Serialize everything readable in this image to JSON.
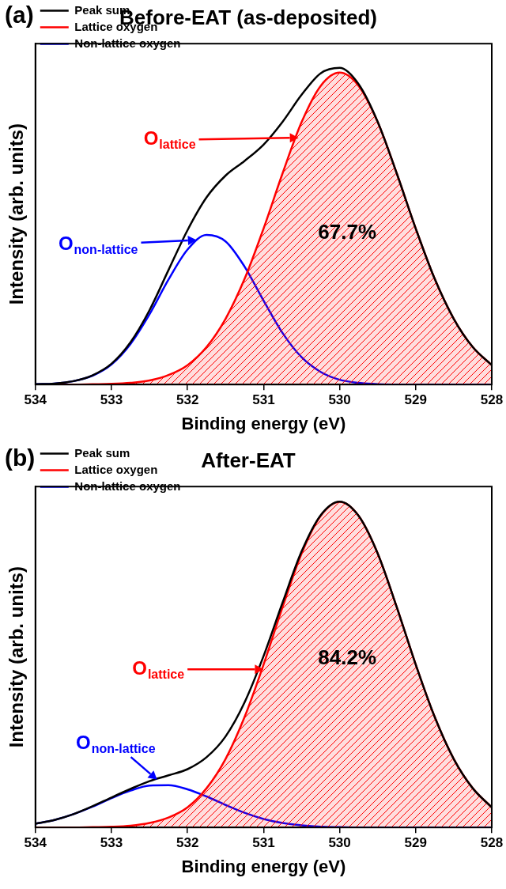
{
  "chart_data": [
    {
      "type": "line",
      "panel": "(a)",
      "title": "Before-EAT (as-deposited)",
      "x_label": "Binding energy (eV)",
      "y_label": "Intensity (arb. units)",
      "x": [
        534,
        533.75,
        533.5,
        533.25,
        533,
        532.75,
        532.5,
        532.25,
        532,
        531.75,
        531.5,
        531.25,
        531,
        530.75,
        530.5,
        530.25,
        530,
        529.75,
        529.5,
        529.25,
        529,
        528.75,
        528.5,
        528.25,
        528
      ],
      "series": [
        {
          "name": "Peak sum",
          "color": "#000000",
          "type": "line",
          "marker": "none",
          "line_style": "solid",
          "values": [
            0.1,
            0.3,
            1.0,
            2.7,
            6.1,
            12.4,
            21.8,
            33.6,
            45.3,
            54.9,
            61.3,
            65.6,
            70.4,
            77.1,
            85.0,
            91.3,
            92.9,
            88.1,
            77.1,
            62.0,
            45.8,
            31.0,
            19.3,
            11.0,
            5.7
          ]
        },
        {
          "name": "Lattice oxygen",
          "color": "#ff0000",
          "type": "area",
          "marker": "none",
          "line_style": "solid",
          "values": [
            0,
            0,
            0,
            0.1,
            0.2,
            0.5,
            1.2,
            2.8,
            5.7,
            11.0,
            19.3,
            31.0,
            45.8,
            62.0,
            77.0,
            87.6,
            91.5,
            87.6,
            77.0,
            62.0,
            45.8,
            31.0,
            19.3,
            11.0,
            5.7
          ]
        },
        {
          "name": "Non-lattice oxygen",
          "color": "#0000ff",
          "type": "line",
          "marker": "none",
          "line_style": "solid",
          "values": [
            0.1,
            0.3,
            1.0,
            2.6,
            5.9,
            11.9,
            20.6,
            30.8,
            39.6,
            43.9,
            42.0,
            34.6,
            24.6,
            15.1,
            8.0,
            3.7,
            1.4,
            0.5,
            0.1,
            0,
            0,
            0,
            0,
            0,
            0
          ]
        }
      ],
      "xlim": [
        534,
        528
      ],
      "xticks": [
        534,
        533,
        532,
        531,
        530,
        529,
        528
      ],
      "ylim": [
        0,
        100
      ],
      "tick_labels": "x",
      "grid": false,
      "legend": "upper left",
      "annotations": [
        {
          "text": "O",
          "subscript": "lattice",
          "color": "#ff0000",
          "text_at": [
            532.24,
            71.8
          ],
          "x": 530.54,
          "y": 72.4
        },
        {
          "text": "O",
          "subscript": "non-lattice",
          "color": "#0000ff",
          "text_at": [
            533.18,
            41.0
          ],
          "x": 531.88,
          "y": 42.4
        },
        {
          "text": "67.7%",
          "color": "#000000",
          "text_at": [
            529.9,
            44.5
          ]
        }
      ]
    },
    {
      "type": "line",
      "panel": "(b)",
      "title": "After-EAT",
      "x_label": "Binding energy (eV)",
      "y_label": "Intensity (arb. units)",
      "x": [
        534,
        533.75,
        533.5,
        533.25,
        533,
        532.75,
        532.5,
        532.25,
        532,
        531.75,
        531.5,
        531.25,
        531,
        530.75,
        530.5,
        530.25,
        530,
        529.75,
        529.5,
        529.25,
        529,
        528.75,
        528.5,
        528.25,
        528
      ],
      "series": [
        {
          "name": "Peak sum",
          "color": "#000000",
          "type": "line",
          "marker": "none",
          "line_style": "solid",
          "values": [
            1.1,
            2.2,
            3.9,
            6.2,
            8.8,
            11.3,
            13.6,
            15.3,
            17.1,
            20.6,
            26.7,
            36.7,
            50.3,
            66.0,
            81.0,
            91.6,
            95.6,
            91.4,
            80.4,
            64.7,
            47.8,
            32.4,
            20.1,
            11.5,
            5.9
          ]
        },
        {
          "name": "Lattice oxygen",
          "color": "#ff0000",
          "type": "area",
          "marker": "none",
          "line_style": "solid",
          "values": [
            0,
            0,
            0,
            0.1,
            0.2,
            0.5,
            1.3,
            2.9,
            5.9,
            11.5,
            20.1,
            32.4,
            47.8,
            64.7,
            80.4,
            91.4,
            95.5,
            91.4,
            80.4,
            64.7,
            47.8,
            32.4,
            20.1,
            11.5,
            5.9
          ]
        },
        {
          "name": "Non-lattice oxygen",
          "color": "#0000ff",
          "type": "line",
          "marker": "none",
          "line_style": "solid",
          "values": [
            1.1,
            2.2,
            3.9,
            6.1,
            8.6,
            10.8,
            12.3,
            12.4,
            11.2,
            9.1,
            6.6,
            4.3,
            2.5,
            1.3,
            0.6,
            0.2,
            0.1,
            0,
            0,
            0,
            0,
            0,
            0,
            0,
            0
          ]
        }
      ],
      "xlim": [
        534,
        528
      ],
      "xticks": [
        534,
        533,
        532,
        531,
        530,
        529,
        528
      ],
      "ylim": [
        0,
        100
      ],
      "tick_labels": "x",
      "grid": false,
      "legend": "upper left",
      "annotations": [
        {
          "text": "O",
          "subscript": "lattice",
          "color": "#ff0000",
          "text_at": [
            532.39,
            46.4
          ],
          "x": 531.0,
          "y": 46.4
        },
        {
          "text": "O",
          "subscript": "non-lattice",
          "color": "#0000ff",
          "text_at": [
            532.95,
            24.6
          ],
          "x": 532.4,
          "y": 14.0
        },
        {
          "text": "84.2%",
          "color": "#000000",
          "text_at": [
            529.9,
            49.6
          ]
        }
      ]
    }
  ]
}
